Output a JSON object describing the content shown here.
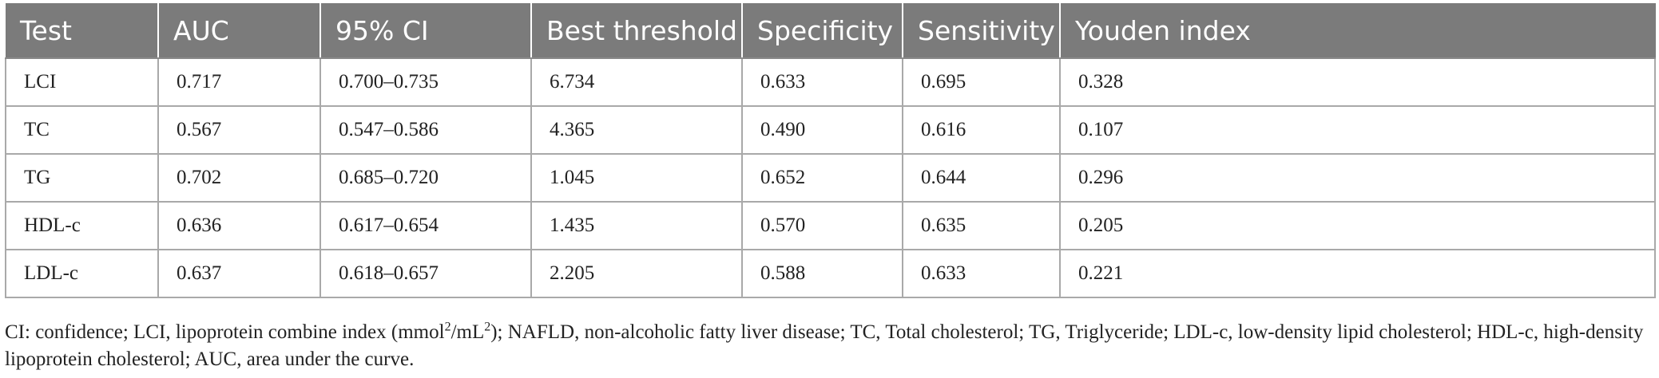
{
  "table": {
    "headers": [
      "Test",
      "AUC",
      "95% CI",
      "Best threshold",
      "Specificity",
      "Sensitivity",
      "Youden index"
    ],
    "rows": [
      [
        "LCI",
        "0.717",
        "0.700–0.735",
        "6.734",
        "0.633",
        "0.695",
        "0.328"
      ],
      [
        "TC",
        "0.567",
        "0.547–0.586",
        "4.365",
        "0.490",
        "0.616",
        "0.107"
      ],
      [
        "TG",
        "0.702",
        "0.685–0.720",
        "1.045",
        "0.652",
        "0.644",
        "0.296"
      ],
      [
        "HDL-c",
        "0.636",
        "0.617–0.654",
        "1.435",
        "0.570",
        "0.635",
        "0.205"
      ],
      [
        "LDL-c",
        "0.637",
        "0.618–0.657",
        "2.205",
        "0.588",
        "0.633",
        "0.221"
      ]
    ]
  },
  "footnote": {
    "part1": "CI: confidence; LCI, lipoprotein combine index (mmol",
    "sup1": "2",
    "part2": "/mL",
    "sup2": "2",
    "part3": "); NAFLD, non-alcoholic fatty liver disease; TC, Total cholesterol; TG, Triglyceride; LDL-c, low-density lipid cholesterol; HDL-c, high-density lipoprotein cholesterol; AUC, area under the curve."
  }
}
